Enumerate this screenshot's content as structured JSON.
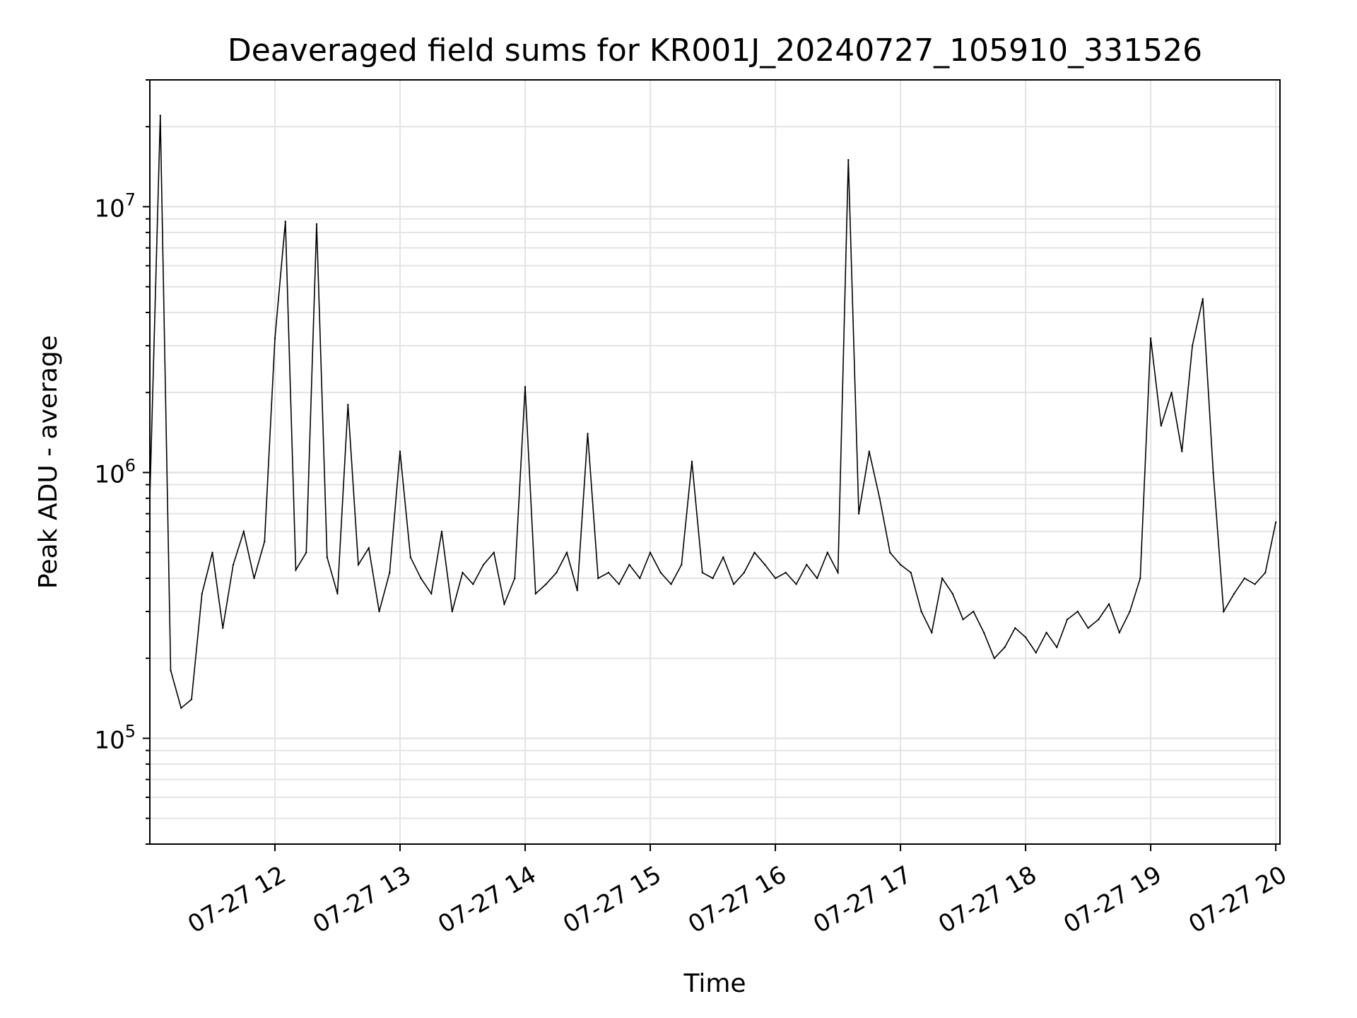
{
  "chart_data": {
    "type": "line",
    "title": "Deaveraged field sums for KR001J_20240727_105910_331526",
    "xlabel": "Time",
    "ylabel": "Peak ADU - average",
    "yscale": "log",
    "ylim": [
      40000,
      30000000
    ],
    "xlim": [
      "2024-07-27 11:00",
      "2024-07-27 20:02"
    ],
    "x_tick_labels": [
      "07-27 12",
      "07-27 13",
      "07-27 14",
      "07-27 15",
      "07-27 16",
      "07-27 17",
      "07-27 18",
      "07-27 19",
      "07-27 20"
    ],
    "y_tick_labels": [
      {
        "base": "10",
        "exp": "5",
        "value": 100000
      },
      {
        "base": "10",
        "exp": "6",
        "value": 1000000
      },
      {
        "base": "10",
        "exp": "7",
        "value": 10000000
      }
    ],
    "grid": true,
    "line_color": "#000000",
    "grid_color": "#e4e4e4",
    "series": [
      {
        "x": [
          "2024-07-27 11:00",
          "2024-07-27 11:05",
          "2024-07-27 11:10",
          "2024-07-27 11:15",
          "2024-07-27 11:20",
          "2024-07-27 11:25",
          "2024-07-27 11:30",
          "2024-07-27 11:35",
          "2024-07-27 11:40",
          "2024-07-27 11:45",
          "2024-07-27 11:50",
          "2024-07-27 11:55",
          "2024-07-27 12:00",
          "2024-07-27 12:05",
          "2024-07-27 12:10",
          "2024-07-27 12:15",
          "2024-07-27 12:20",
          "2024-07-27 12:25",
          "2024-07-27 12:30",
          "2024-07-27 12:35",
          "2024-07-27 12:40",
          "2024-07-27 12:45",
          "2024-07-27 12:50",
          "2024-07-27 12:55",
          "2024-07-27 13:00",
          "2024-07-27 13:05",
          "2024-07-27 13:10",
          "2024-07-27 13:15",
          "2024-07-27 13:20",
          "2024-07-27 13:25",
          "2024-07-27 13:30",
          "2024-07-27 13:35",
          "2024-07-27 13:40",
          "2024-07-27 13:45",
          "2024-07-27 13:50",
          "2024-07-27 13:55",
          "2024-07-27 14:00",
          "2024-07-27 14:05",
          "2024-07-27 14:10",
          "2024-07-27 14:15",
          "2024-07-27 14:20",
          "2024-07-27 14:25",
          "2024-07-27 14:30",
          "2024-07-27 14:35",
          "2024-07-27 14:40",
          "2024-07-27 14:45",
          "2024-07-27 14:50",
          "2024-07-27 14:55",
          "2024-07-27 15:00",
          "2024-07-27 15:05",
          "2024-07-27 15:10",
          "2024-07-27 15:15",
          "2024-07-27 15:20",
          "2024-07-27 15:25",
          "2024-07-27 15:30",
          "2024-07-27 15:35",
          "2024-07-27 15:40",
          "2024-07-27 15:45",
          "2024-07-27 15:50",
          "2024-07-27 15:55",
          "2024-07-27 16:00",
          "2024-07-27 16:05",
          "2024-07-27 16:10",
          "2024-07-27 16:15",
          "2024-07-27 16:20",
          "2024-07-27 16:25",
          "2024-07-27 16:30",
          "2024-07-27 16:35",
          "2024-07-27 16:40",
          "2024-07-27 16:45",
          "2024-07-27 16:50",
          "2024-07-27 16:55",
          "2024-07-27 17:00",
          "2024-07-27 17:05",
          "2024-07-27 17:10",
          "2024-07-27 17:15",
          "2024-07-27 17:20",
          "2024-07-27 17:25",
          "2024-07-27 17:30",
          "2024-07-27 17:35",
          "2024-07-27 17:40",
          "2024-07-27 17:45",
          "2024-07-27 17:50",
          "2024-07-27 17:55",
          "2024-07-27 18:00",
          "2024-07-27 18:05",
          "2024-07-27 18:10",
          "2024-07-27 18:15",
          "2024-07-27 18:20",
          "2024-07-27 18:25",
          "2024-07-27 18:30",
          "2024-07-27 18:35",
          "2024-07-27 18:40",
          "2024-07-27 18:45",
          "2024-07-27 18:50",
          "2024-07-27 18:55",
          "2024-07-27 19:00",
          "2024-07-27 19:05",
          "2024-07-27 19:10",
          "2024-07-27 19:15",
          "2024-07-27 19:20",
          "2024-07-27 19:25",
          "2024-07-27 19:30",
          "2024-07-27 19:35",
          "2024-07-27 19:40",
          "2024-07-27 19:45",
          "2024-07-27 19:50",
          "2024-07-27 19:55",
          "2024-07-27 20:00"
        ],
        "y": [
          800000,
          22000000,
          180000,
          130000,
          140000,
          350000,
          500000,
          260000,
          450000,
          600000,
          400000,
          550000,
          3200000,
          8800000,
          430000,
          500000,
          8600000,
          480000,
          350000,
          1800000,
          450000,
          520000,
          300000,
          420000,
          1200000,
          480000,
          400000,
          350000,
          600000,
          300000,
          420000,
          380000,
          450000,
          500000,
          320000,
          400000,
          2100000,
          350000,
          380000,
          420000,
          500000,
          360000,
          1400000,
          400000,
          420000,
          380000,
          450000,
          400000,
          500000,
          420000,
          380000,
          450000,
          1100000,
          420000,
          400000,
          480000,
          380000,
          420000,
          500000,
          450000,
          400000,
          420000,
          380000,
          450000,
          400000,
          500000,
          420000,
          15000000,
          700000,
          1200000,
          800000,
          500000,
          450000,
          420000,
          300000,
          250000,
          400000,
          350000,
          280000,
          300000,
          250000,
          200000,
          220000,
          260000,
          240000,
          210000,
          250000,
          220000,
          280000,
          300000,
          260000,
          280000,
          320000,
          250000,
          300000,
          400000,
          3200000,
          1500000,
          2000000,
          1200000,
          3000000,
          4500000,
          1000000,
          300000,
          350000,
          400000,
          380000,
          420000,
          650000
        ]
      }
    ]
  }
}
